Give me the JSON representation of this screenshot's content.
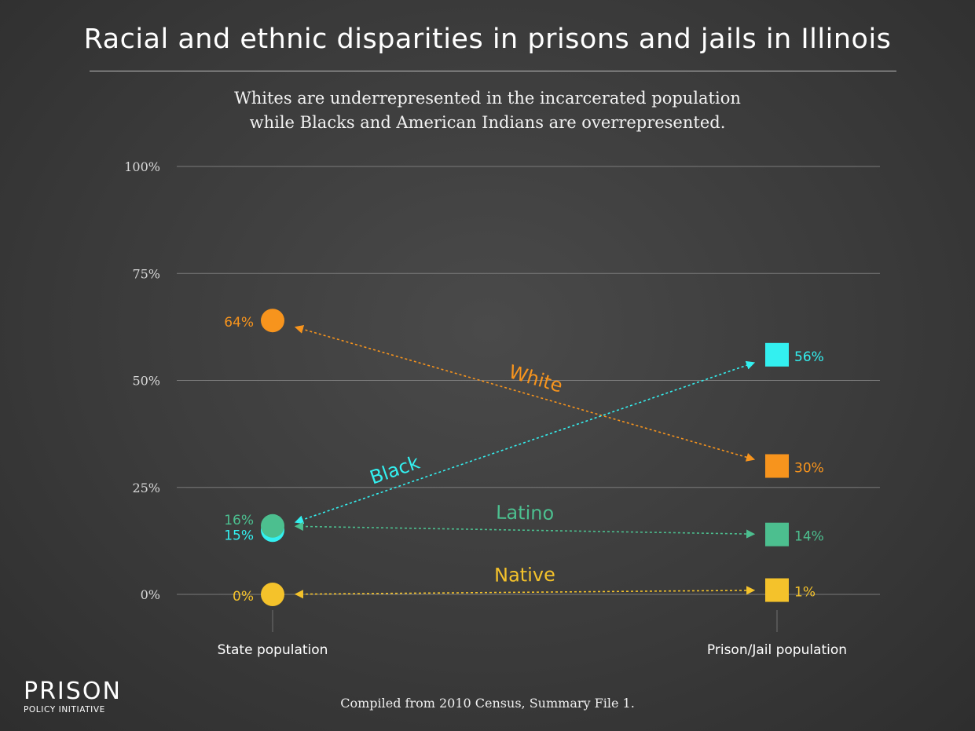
{
  "title": "Racial and ethnic disparities in prisons and jails in Illinois",
  "subtitle_line1": "Whites are underrepresented in the incarcerated population",
  "subtitle_line2": "while Blacks and American Indians are overrepresented.",
  "source": "Compiled from 2010 Census, Summary File 1.",
  "logo": {
    "line1": "PRISON",
    "line2": "POLICY INITIATIVE"
  },
  "chart_data": {
    "type": "line",
    "categories": [
      "State population",
      "Prison/Jail population"
    ],
    "ylim": [
      0,
      100
    ],
    "yticks": [
      0,
      25,
      50,
      75,
      100
    ],
    "ytick_labels": [
      "0%",
      "25%",
      "50%",
      "75%",
      "100%"
    ],
    "grid": true,
    "series": [
      {
        "name": "White",
        "values": [
          64,
          30
        ],
        "labels": [
          "64%",
          "30%"
        ],
        "color": "#f7941d"
      },
      {
        "name": "Black",
        "values": [
          15,
          56
        ],
        "labels": [
          "15%",
          "56%"
        ],
        "color": "#33f0f0"
      },
      {
        "name": "Latino",
        "values": [
          16,
          14
        ],
        "labels": [
          "16%",
          "14%"
        ],
        "color": "#4cbf8f"
      },
      {
        "name": "Native",
        "values": [
          0,
          1
        ],
        "labels": [
          "0%",
          "1%"
        ],
        "color": "#f4c22b"
      }
    ]
  }
}
